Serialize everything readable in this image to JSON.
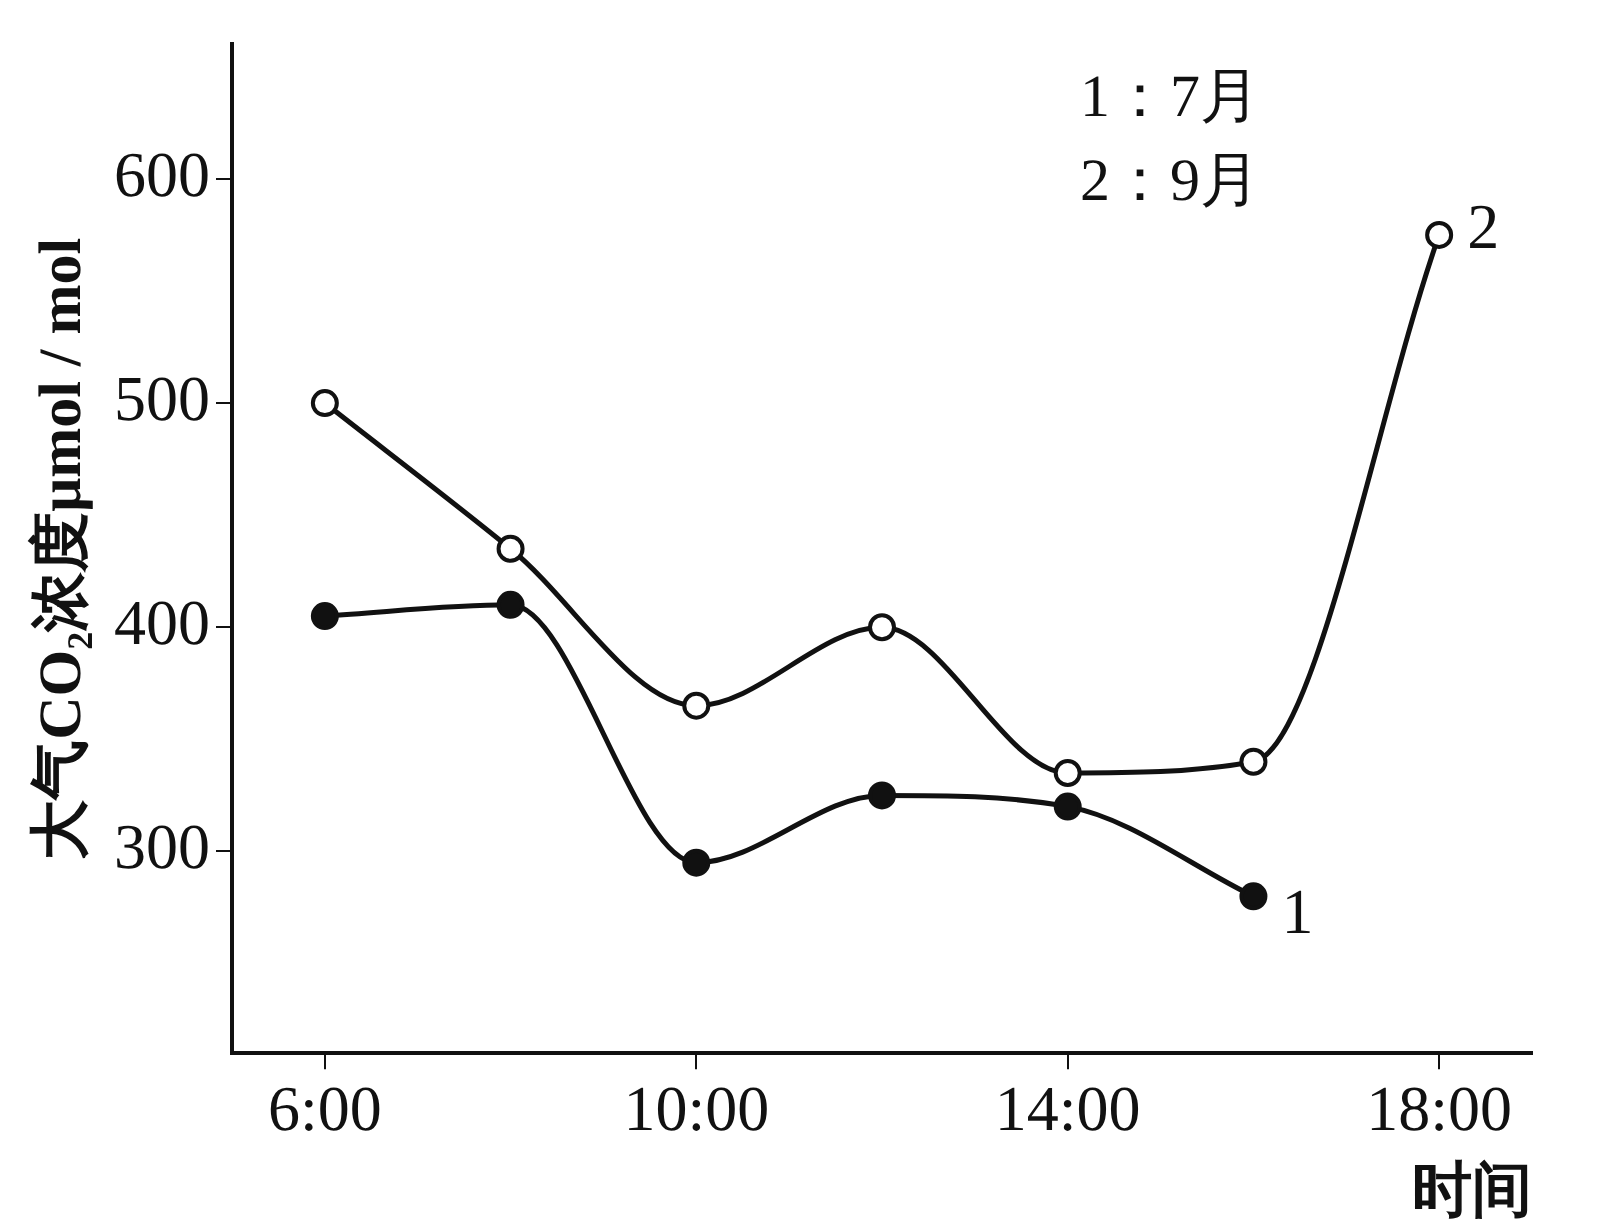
{
  "chart_data": {
    "type": "line",
    "xlabel": "时间",
    "ylabel": "大气CO₂浓度μmol / mol",
    "annotations": [
      "1：7月",
      "2：9月"
    ],
    "series": [
      {
        "name": "1",
        "color": "#111111",
        "x": [
          6,
          8,
          10,
          12,
          14,
          16
        ],
        "values": [
          405,
          410,
          295,
          325,
          320,
          280
        ]
      },
      {
        "name": "2",
        "color": "#111111",
        "x": [
          6,
          8,
          10,
          12,
          14,
          16,
          18
        ],
        "values": [
          500,
          435,
          365,
          400,
          335,
          340,
          575
        ]
      }
    ],
    "xlim": [
      5,
      19
    ],
    "xticks": [
      {
        "value": 6,
        "label": "6:00"
      },
      {
        "value": 10,
        "label": "10:00"
      },
      {
        "value": 14,
        "label": "14:00"
      },
      {
        "value": 18,
        "label": "18:00"
      }
    ],
    "ylim": [
      210,
      660
    ],
    "yticks": [
      300,
      400,
      500,
      600
    ],
    "grid": false,
    "legend": false,
    "marker": "circle",
    "line_style": "solid"
  }
}
